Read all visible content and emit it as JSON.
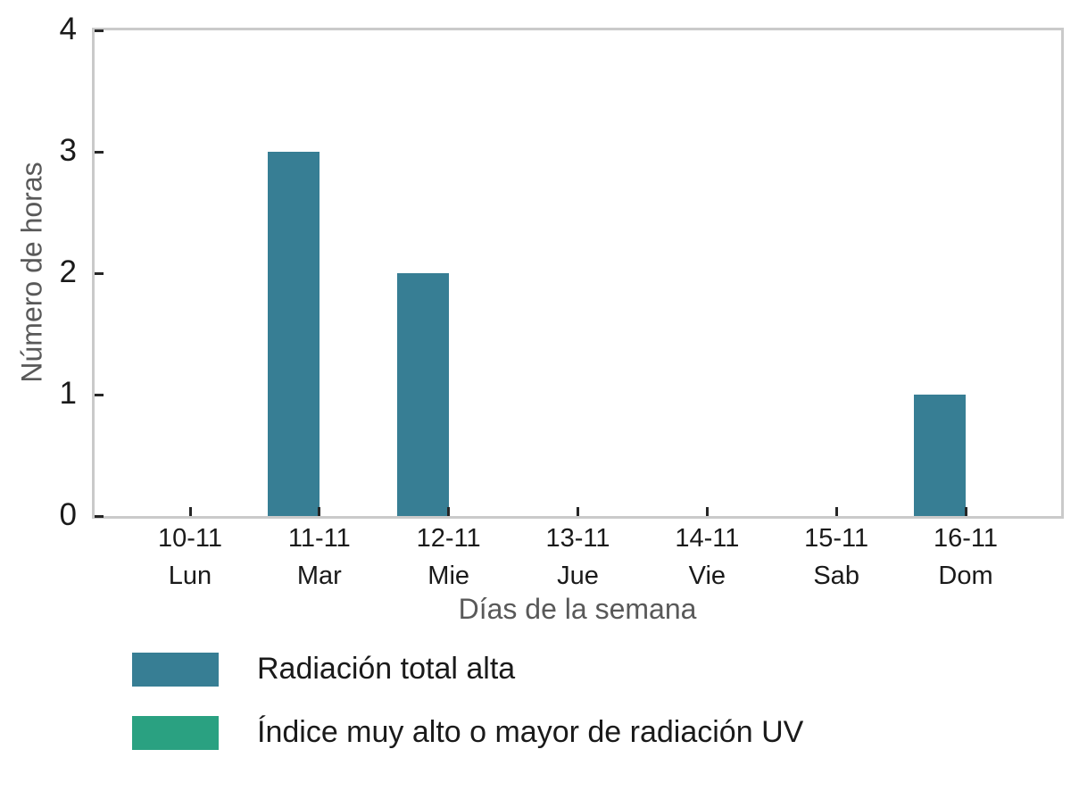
{
  "chart_data": {
    "type": "bar",
    "title": "",
    "xlabel": "Días de la semana",
    "ylabel": "Número de horas",
    "categories": [
      {
        "date": "10-11",
        "day": "Lun"
      },
      {
        "date": "11-11",
        "day": "Mar"
      },
      {
        "date": "12-11",
        "day": "Mie"
      },
      {
        "date": "13-11",
        "day": "Jue"
      },
      {
        "date": "14-11",
        "day": "Vie"
      },
      {
        "date": "15-11",
        "day": "Sab"
      },
      {
        "date": "16-11",
        "day": "Dom"
      }
    ],
    "series": [
      {
        "name": "Radiación total alta",
        "color": "#377e94",
        "values": [
          0,
          3,
          2,
          0,
          0,
          0,
          1
        ]
      },
      {
        "name": "Índice muy alto o mayor de radiación UV",
        "color": "#2aa181",
        "values": [
          0,
          0,
          0,
          0,
          0,
          0,
          0
        ]
      }
    ],
    "ylim": [
      0,
      4
    ],
    "yticks": [
      0,
      1,
      2,
      3,
      4
    ],
    "grid": false,
    "legend_position": "below-left",
    "colors": {
      "axis_border": "#cacaca",
      "tick_mark": "#262626",
      "tick_label": "#1a1a1a",
      "axis_title": "#595959",
      "legend_text": "#1a1a1a",
      "background": "#ffffff"
    }
  }
}
